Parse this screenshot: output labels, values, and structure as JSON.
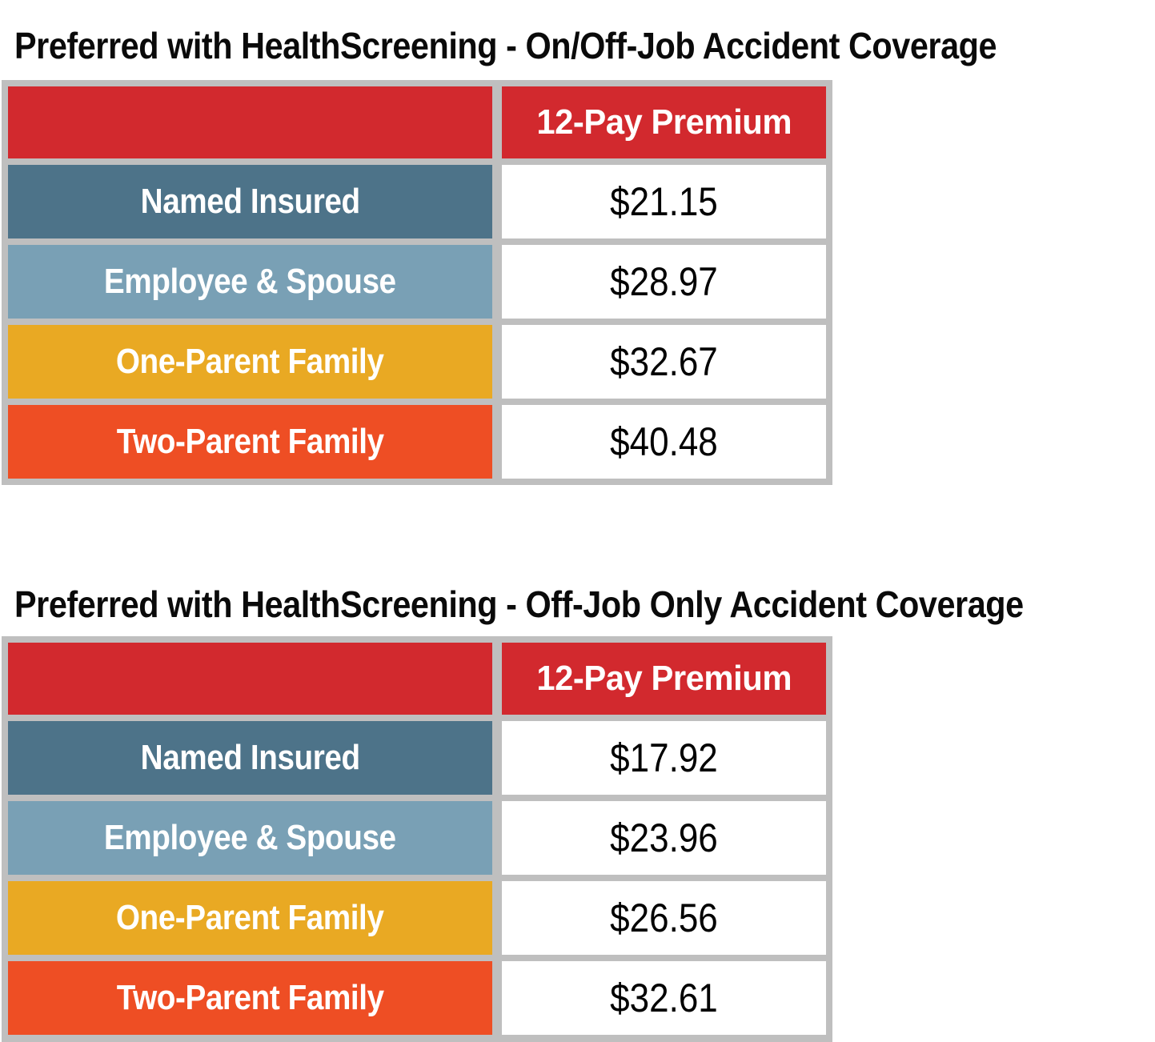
{
  "colors": {
    "header_red": "#d2292e",
    "row_named_insured": "#4d7389",
    "row_employee_spouse": "#79a0b5",
    "row_one_parent": "#e9a923",
    "row_two_parent": "#ee4e24",
    "table_background_border": "#bfbfbf",
    "label_text": "#ffffff",
    "value_text": "#000000",
    "title_text": "#0a0a0a"
  },
  "tables": [
    {
      "title": "Preferred with HealthScreening - On/Off-Job Accident Coverage",
      "column_header": "12-Pay Premium",
      "rows": [
        {
          "label": "Named Insured",
          "value": "$21.15"
        },
        {
          "label": "Employee & Spouse",
          "value": "$28.97"
        },
        {
          "label": "One-Parent Family",
          "value": "$32.67"
        },
        {
          "label": "Two-Parent Family",
          "value": "$40.48"
        }
      ]
    },
    {
      "title": "Preferred with HealthScreening - Off-Job Only Accident Coverage",
      "column_header": "12-Pay Premium",
      "rows": [
        {
          "label": "Named Insured",
          "value": "$17.92"
        },
        {
          "label": "Employee & Spouse",
          "value": "$23.96"
        },
        {
          "label": "One-Parent Family",
          "value": "$26.56"
        },
        {
          "label": "Two-Parent Family",
          "value": "$32.61"
        }
      ]
    }
  ]
}
